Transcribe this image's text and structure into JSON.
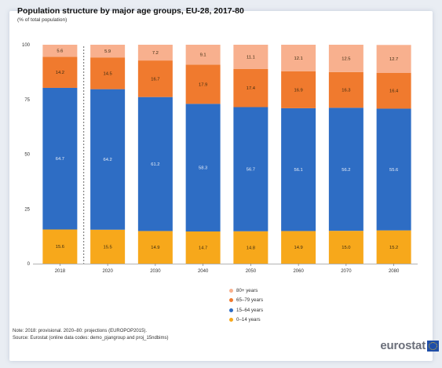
{
  "title": "Population structure by major age groups, EU-28, 2017-80",
  "subtitle": "(% of total population)",
  "note": "Note: 2018: provisional. 2020–80: projections (EUROPOP2015).",
  "source": "Source: Eurostat (online data codes: demo_pjangroup and proj_15ndbims)",
  "logo_text": "eurostat",
  "chart_data": {
    "type": "bar",
    "stacked": true,
    "categories": [
      "2018",
      "2020",
      "2030",
      "2040",
      "2050",
      "2060",
      "2070",
      "2080"
    ],
    "ylim": [
      0,
      100
    ],
    "yticks": [
      "0",
      "25",
      "50",
      "75",
      "100"
    ],
    "xlabel": "",
    "ylabel": "",
    "grid": false,
    "legend_position": "bottom-center",
    "separator_after_category": "2018",
    "series": [
      {
        "name": "0–14 years",
        "color": "#f7a81b",
        "values": [
          15.6,
          15.5,
          14.9,
          14.7,
          14.8,
          14.9,
          15.0,
          15.2
        ]
      },
      {
        "name": "15–64 years",
        "color": "#2e6dc4",
        "values": [
          64.7,
          64.2,
          61.2,
          58.3,
          56.7,
          56.1,
          56.2,
          55.6
        ]
      },
      {
        "name": "65–79 years",
        "color": "#f07a2e",
        "values": [
          14.2,
          14.5,
          16.7,
          17.9,
          17.4,
          16.9,
          16.3,
          16.4
        ]
      },
      {
        "name": "80+ years",
        "color": "#f8b08e",
        "values": [
          5.6,
          5.9,
          7.2,
          9.1,
          11.1,
          12.1,
          12.5,
          12.7
        ]
      }
    ]
  }
}
